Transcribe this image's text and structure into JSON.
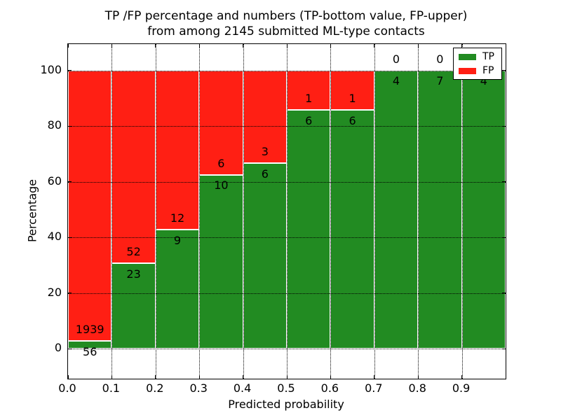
{
  "figure": {
    "title_line1": "TP /FP percentage and numbers (TP-bottom value, FP-upper)",
    "title_line2": "from among 2145 submitted ML-type contacts"
  },
  "chart_data": {
    "type": "bar",
    "stacked": true,
    "normalized_to_percent": true,
    "title": "TP /FP percentage and numbers (TP-bottom value, FP-upper) from among 2145 submitted ML-type contacts",
    "xlabel": "Predicted probability",
    "ylabel": "Percentage",
    "total_contacts": 2145,
    "categories": [
      "0.0-0.1",
      "0.1-0.2",
      "0.2-0.3",
      "0.3-0.4",
      "0.4-0.5",
      "0.5-0.6",
      "0.6-0.7",
      "0.7-0.8",
      "0.8-0.9",
      "0.9-1.0"
    ],
    "x_tick_labels": [
      "0.0",
      "0.1",
      "0.2",
      "0.3",
      "0.4",
      "0.5",
      "0.6",
      "0.7",
      "0.8",
      "0.9"
    ],
    "y_tick_values": [
      0,
      20,
      40,
      60,
      80,
      100
    ],
    "xlim": [
      0.0,
      1.0
    ],
    "ylim": [
      -10.8,
      109.4
    ],
    "bar_width": 0.1,
    "grid": "dotted black, on top of bars",
    "bar_edge_color": "#ffffff",
    "series": [
      {
        "name": "TP",
        "color": "#228b22",
        "counts": [
          56,
          23,
          9,
          10,
          6,
          6,
          6,
          4,
          7,
          4
        ]
      },
      {
        "name": "FP",
        "color": "#ff1f14",
        "counts": [
          1939,
          52,
          12,
          6,
          3,
          1,
          1,
          0,
          0,
          0
        ]
      }
    ],
    "tp_percent_per_bin": [
      2.81,
      30.67,
      42.86,
      62.5,
      66.67,
      85.71,
      85.71,
      100,
      100,
      100
    ],
    "legend": {
      "position": "upper right",
      "items": [
        {
          "label": "TP",
          "color": "#228b22"
        },
        {
          "label": "FP",
          "color": "#ff1f14"
        }
      ]
    }
  }
}
